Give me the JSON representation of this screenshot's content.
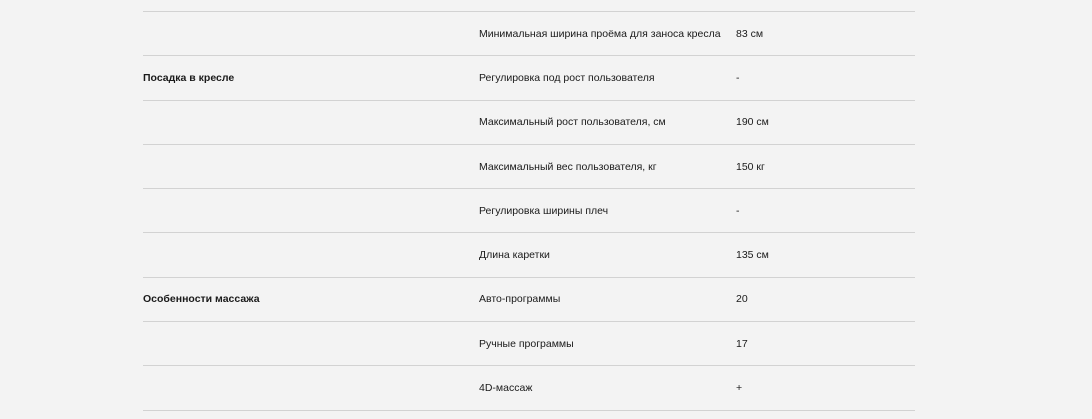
{
  "specs": [
    {
      "category": "",
      "param": "Минимальная ширина проёма для заноса кресла",
      "value": "83 см"
    },
    {
      "category": "Посадка в кресле",
      "param": "Регулировка под рост пользователя",
      "value": "-"
    },
    {
      "category": "",
      "param": "Максимальный рост пользователя, см",
      "value": "190 см"
    },
    {
      "category": "",
      "param": "Максимальный вес пользователя, кг",
      "value": "150 кг"
    },
    {
      "category": "",
      "param": "Регулировка ширины плеч",
      "value": "-"
    },
    {
      "category": "",
      "param": "Длина каретки",
      "value": "135 см"
    },
    {
      "category": "Особенности массажа",
      "param": "Авто-программы",
      "value": "20"
    },
    {
      "category": "",
      "param": "Ручные программы",
      "value": "17"
    },
    {
      "category": "",
      "param": "4D-массаж",
      "value": "+"
    }
  ]
}
